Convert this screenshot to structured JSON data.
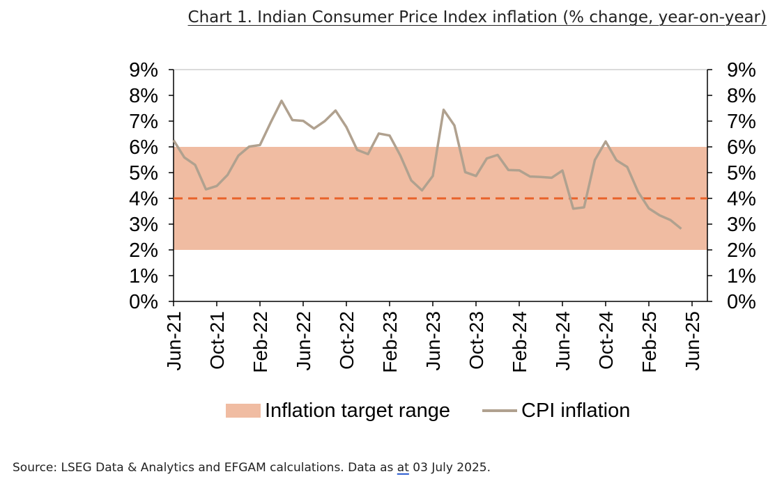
{
  "chart_data": {
    "type": "line",
    "title": "Chart 1. Indian Consumer Price Index inflation (% change, year-on-year)",
    "xlabel": "",
    "ylabel": "",
    "ylim": [
      0,
      9
    ],
    "y_ticks": [
      "0%",
      "1%",
      "2%",
      "3%",
      "4%",
      "5%",
      "6%",
      "7%",
      "8%",
      "9%"
    ],
    "x_ticks": [
      "Jun-21",
      "Oct-21",
      "Feb-22",
      "Jun-22",
      "Oct-22",
      "Feb-23",
      "Jun-23",
      "Oct-23",
      "Feb-24",
      "Jun-24",
      "Oct-24",
      "Feb-25",
      "Jun-25"
    ],
    "target_range": {
      "name": "Inflation target range",
      "low": 2,
      "high": 6,
      "color": "#f0bca2"
    },
    "target_midpoint": {
      "value": 4,
      "color": "#e8622a"
    },
    "series": [
      {
        "name": "CPI inflation",
        "color": "#b0a18f",
        "x": [
          "Jun-21",
          "Jul-21",
          "Aug-21",
          "Sep-21",
          "Oct-21",
          "Nov-21",
          "Dec-21",
          "Jan-22",
          "Feb-22",
          "Mar-22",
          "Apr-22",
          "May-22",
          "Jun-22",
          "Jul-22",
          "Aug-22",
          "Sep-22",
          "Oct-22",
          "Nov-22",
          "Dec-22",
          "Jan-23",
          "Feb-23",
          "Mar-23",
          "Apr-23",
          "May-23",
          "Jun-23",
          "Jul-23",
          "Aug-23",
          "Sep-23",
          "Oct-23",
          "Nov-23",
          "Dec-23",
          "Jan-24",
          "Feb-24",
          "Mar-24",
          "Apr-24",
          "May-24",
          "Jun-24",
          "Jul-24",
          "Aug-24",
          "Sep-24",
          "Oct-24",
          "Nov-24",
          "Dec-24",
          "Jan-25",
          "Feb-25",
          "Mar-25",
          "Apr-25",
          "May-25"
        ],
        "values": [
          6.26,
          5.59,
          5.3,
          4.35,
          4.48,
          4.91,
          5.66,
          6.01,
          6.07,
          6.95,
          7.79,
          7.04,
          7.01,
          6.71,
          7.0,
          7.41,
          6.77,
          5.88,
          5.72,
          6.52,
          6.44,
          5.66,
          4.7,
          4.31,
          4.87,
          7.44,
          6.83,
          5.02,
          4.87,
          5.55,
          5.69,
          5.1,
          5.09,
          4.85,
          4.83,
          4.8,
          5.08,
          3.6,
          3.65,
          5.49,
          6.21,
          5.48,
          5.22,
          4.26,
          3.61,
          3.34,
          3.16,
          2.82
        ]
      }
    ],
    "legend_position": "bottom"
  },
  "source_note": {
    "before": "Source: LSEG Data & Analytics and EFGAM calculations. Data as ",
    "underlined": "at",
    "after": " 03 July 2025."
  }
}
